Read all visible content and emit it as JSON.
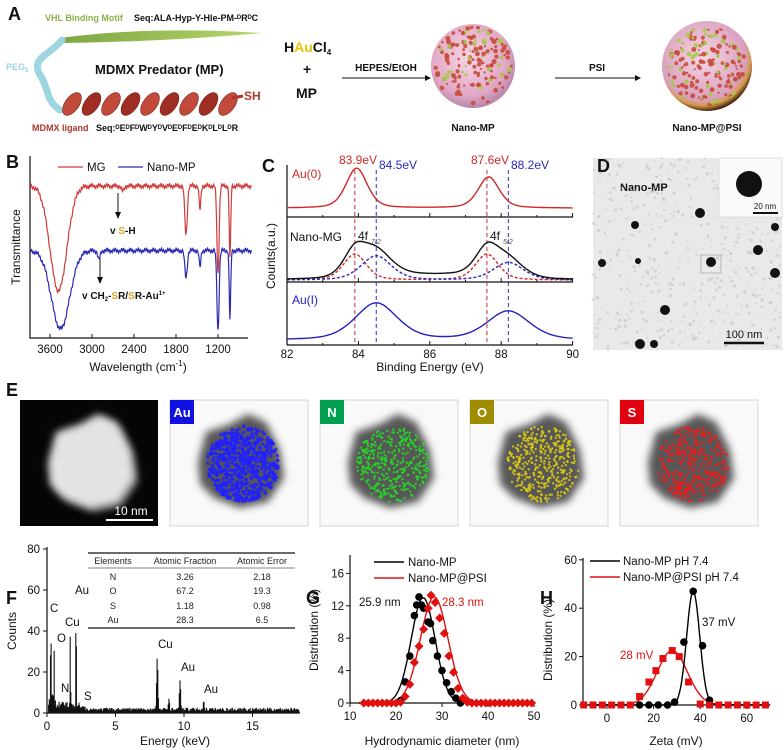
{
  "figure": {
    "panelA": {
      "letter": "A",
      "vhl_label": "VHL Binding Motif",
      "vhl_seq": "Seq:ALA-Hyp-Y-Hle-PM-ᴰRᴰC",
      "peg_label": "PEG",
      "peg_sub": "5",
      "mp_title": "MDMX Predator (MP)",
      "sh_label": "SH",
      "ligand_label": "MDMX ligand",
      "ligand_seq": "Seq:ᴰEᴰFᴰWᴰYᴰVᴰEᴰFᴰEᴰKᴰLᴰLᴰR",
      "reagent_h": "H",
      "reagent_au": "Au",
      "reagent_cl": "Cl",
      "reagent_sub": "4",
      "plus": "+",
      "mp": "MP",
      "step1": "HEPES/EtOH",
      "step2": "PSI",
      "product1": "Nano-MP",
      "product2": "Nano-MP@PSI",
      "colors": {
        "vhl": "#8db04a",
        "peg": "#9fd4e6",
        "ligand": "#b0362c",
        "au": "#e8c400"
      }
    },
    "panelB": {
      "letter": "B",
      "annot1_v": "v ",
      "annot1_s": "S",
      "annot1_rest": "-H",
      "annot2_v": "v CH",
      "annot2_sub": "2",
      "annot2_dash": "-",
      "annot2_s1": "S",
      "annot2_mid": "R/",
      "annot2_s2": "S",
      "annot2_rest": "R-Au",
      "annot2_sup": "1+"
    },
    "panelC": {
      "letter": "C",
      "nano_mg_label": "Nano-MG",
      "orbital1": "4f",
      "orbital1_sub": "7/2",
      "orbital2": "4f",
      "orbital2_sub": "5/2",
      "peak_labels": [
        "83.9eV",
        "84.5eV",
        "87.6eV",
        "88.2eV"
      ]
    },
    "panelD": {
      "letter": "D",
      "label": "Nano-MP",
      "scale_main": "100 nm",
      "scale_inset": "20 nm"
    },
    "panelE": {
      "letter": "E",
      "scale": "10 nm",
      "maps": [
        {
          "element": "Au",
          "color": "#1010e0"
        },
        {
          "element": "N",
          "color": "#00a050"
        },
        {
          "element": "O",
          "color": "#a08c00"
        },
        {
          "element": "S",
          "color": "#e00010"
        }
      ]
    },
    "panelF": {
      "letter": "F",
      "table": {
        "headers": [
          "Elements",
          "Atomic Fraction",
          "Atomic Error"
        ],
        "rows": [
          [
            "N",
            "3.26",
            "2.18"
          ],
          [
            "O",
            "67.2",
            "19.3"
          ],
          [
            "S",
            "1.18",
            "0.98"
          ],
          [
            "Au",
            "28.3",
            "6.5"
          ]
        ]
      }
    },
    "panelG": {
      "letter": "G",
      "annot_black": "25.9 nm",
      "annot_red": "28.3 nm"
    },
    "panelH": {
      "letter": "H",
      "annot_black": "37 mV",
      "annot_red": "28 mV"
    }
  },
  "chart_data": [
    {
      "panel": "B",
      "type": "line",
      "xlabel": "Wavelength (cm",
      "xlabel_sup": "-1",
      "xlabel_end": ")",
      "ylabel": "Transmittance",
      "xlim": [
        3880,
        720
      ],
      "xticks": [
        3600,
        3000,
        2400,
        1800,
        1200
      ],
      "grid": false,
      "legend": "top",
      "series": [
        {
          "name": "MG",
          "color": "#d03a3a",
          "baseline": 0.835,
          "bands": [
            {
              "wavenumber": 3480,
              "depth": 0.575,
              "width": 170
            },
            {
              "wavenumber": 2560,
              "depth": 0.03,
              "width": 25
            },
            {
              "wavenumber": 1657,
              "depth": 0.27,
              "width": 25
            },
            {
              "wavenumber": 1457,
              "depth": 0.13,
              "width": 18
            },
            {
              "wavenumber": 1200,
              "depth": 0.48,
              "width": 22
            },
            {
              "wavenumber": 1029,
              "depth": 0.4,
              "width": 15
            }
          ]
        },
        {
          "name": "Nano-MP",
          "color": "#2b2bb0",
          "baseline": 0.48,
          "bands": [
            {
              "wavenumber": 3450,
              "depth": 0.43,
              "width": 185
            },
            {
              "wavenumber": 2900,
              "depth": 0.05,
              "width": 25
            },
            {
              "wavenumber": 1657,
              "depth": 0.15,
              "width": 25
            },
            {
              "wavenumber": 1457,
              "depth": 0.09,
              "width": 18
            },
            {
              "wavenumber": 1200,
              "depth": 0.44,
              "width": 22
            },
            {
              "wavenumber": 1029,
              "depth": 0.38,
              "width": 15
            }
          ]
        }
      ]
    },
    {
      "panel": "C",
      "type": "line",
      "xlabel": "Binding Energy (eV)",
      "ylabel": "Counts(a.u.)",
      "xlim": [
        82,
        90
      ],
      "xticks": [
        82,
        84,
        86,
        88,
        90
      ],
      "series": [
        {
          "name": "Au(0)",
          "color": "#d02828",
          "peaks": [
            {
              "energy": 83.95,
              "height": 1.0,
              "hwhm": 0.35
            },
            {
              "energy": 87.65,
              "height": 0.78,
              "hwhm": 0.35
            }
          ]
        },
        {
          "name": "Nano-MG",
          "color": "#111111",
          "components": [
            {
              "color": "#d02828",
              "peaks": [
                {
                  "energy": 83.9,
                  "height": 0.62,
                  "hwhm": 0.38
                },
                {
                  "energy": 87.6,
                  "height": 0.62,
                  "hwhm": 0.38
                }
              ]
            },
            {
              "color": "#2a2ac0",
              "peaks": [
                {
                  "energy": 84.5,
                  "height": 0.58,
                  "hwhm": 0.5
                },
                {
                  "energy": 88.2,
                  "height": 0.42,
                  "hwhm": 0.5
                }
              ]
            }
          ]
        },
        {
          "name": "Au(I)",
          "color": "#2222c0",
          "peaks": [
            {
              "energy": 84.5,
              "height": 1.0,
              "hwhm": 0.7
            },
            {
              "energy": 88.2,
              "height": 0.78,
              "hwhm": 0.7
            }
          ]
        }
      ],
      "reference_lines": [
        {
          "energy": 83.9,
          "color": "#c03030"
        },
        {
          "energy": 84.5,
          "color": "#3030c0"
        },
        {
          "energy": 87.6,
          "color": "#c03030"
        },
        {
          "energy": 88.2,
          "color": "#3030c0"
        }
      ]
    },
    {
      "panel": "F",
      "type": "bar",
      "xlabel": "Energy (keV)",
      "ylabel": "Counts",
      "xlim": [
        0,
        18.5
      ],
      "ylim": [
        0,
        80
      ],
      "xticks": [
        0,
        5,
        10,
        15
      ],
      "yticks": [
        0,
        20,
        40,
        60,
        80
      ],
      "peaks": [
        {
          "label": "C",
          "energy": 0.28,
          "counts": 47
        },
        {
          "label": "N",
          "energy": 0.39,
          "counts": 9
        },
        {
          "label": "O",
          "energy": 0.52,
          "counts": 31
        },
        {
          "label": "Cu",
          "energy": 1.7,
          "counts": 38
        },
        {
          "label": "Au",
          "energy": 2.12,
          "counts": 54
        },
        {
          "label": "S",
          "energy": 2.31,
          "counts": 6
        },
        {
          "label": "Cu",
          "energy": 8.05,
          "counts": 27
        },
        {
          "label": "",
          "energy": 8.9,
          "counts": 7
        },
        {
          "label": "Au",
          "energy": 9.71,
          "counts": 16
        },
        {
          "label": "Au",
          "energy": 11.44,
          "counts": 6
        }
      ]
    },
    {
      "panel": "G",
      "type": "scatter",
      "xlabel": "Hydrodynamic diameter (nm)",
      "ylabel": "Distribution (%)",
      "xlim": [
        10,
        50
      ],
      "ylim": [
        0,
        18
      ],
      "xticks": [
        10,
        20,
        30,
        40,
        50
      ],
      "yticks": [
        0,
        4,
        8,
        12,
        16
      ],
      "legend": "top-left",
      "series": [
        {
          "name": "Nano-MP",
          "color": "#000000",
          "marker": "circle",
          "fit_mean": 25.9,
          "fit_sd": 2.6,
          "fit_amp": 13.0,
          "x": [
            21,
            22,
            23,
            24,
            24.5,
            25,
            25.5,
            26,
            27,
            27.5,
            28,
            29,
            30,
            31,
            32,
            33,
            34
          ],
          "y": [
            0.3,
            2.6,
            5.8,
            10.8,
            12.1,
            13.1,
            12.1,
            11.7,
            10.0,
            9.8,
            7.7,
            5.8,
            4.0,
            2.5,
            1.4,
            0.6,
            0
          ]
        },
        {
          "name": "Nano-MP@PSI",
          "color": "#e01010",
          "marker": "diamond",
          "fit_mean": 28.3,
          "fit_sd": 3.0,
          "fit_amp": 13.1,
          "x": [
            13,
            14,
            15,
            16,
            17,
            18,
            19,
            20,
            21,
            22,
            23,
            24,
            25,
            26,
            27,
            27.6,
            28.5,
            29.5,
            30.5,
            31.5,
            32.5,
            33.5,
            34.5,
            35.5,
            36.5,
            37.5,
            38.5,
            39.5,
            40.5,
            41.5,
            42.5,
            43.5,
            44.5,
            45.5,
            46.5,
            47.5,
            48.5,
            49.5
          ],
          "y": [
            0,
            0,
            0,
            0,
            0,
            0,
            0,
            0,
            0.1,
            0.8,
            2.3,
            5.0,
            7.0,
            9.1,
            11.7,
            13.3,
            12.4,
            10.5,
            8.6,
            5.8,
            3.8,
            1.8,
            0.6,
            0.1,
            0,
            0,
            0,
            0,
            0,
            0,
            0,
            0,
            0,
            0,
            0,
            0,
            0,
            0
          ]
        }
      ]
    },
    {
      "panel": "H",
      "type": "scatter",
      "xlabel": "Zeta (mV)",
      "ylabel": "Distribution (%)",
      "xlim": [
        -10,
        70
      ],
      "ylim": [
        0,
        60
      ],
      "xticks": [
        0,
        20,
        40,
        60
      ],
      "yticks": [
        0,
        20,
        40,
        60
      ],
      "legend": "top",
      "series": [
        {
          "name": "Nano-MP pH 7.4",
          "color": "#000000",
          "marker": "circle",
          "fit_mean": 37,
          "fit_sd": 2.8,
          "fit_amp": 47,
          "x": [
            14,
            18,
            22,
            26,
            29,
            33,
            37,
            41,
            44
          ],
          "y": [
            0,
            0,
            0,
            0,
            1.2,
            26,
            47,
            24.5,
            2
          ]
        },
        {
          "name": "Nano-MP@PSI pH 7.4",
          "color": "#e01010",
          "marker": "square",
          "fit_mean": 28,
          "fit_sd": 6.5,
          "fit_amp": 22.5,
          "x": [
            -10,
            -6,
            -2,
            2,
            6,
            10,
            14,
            18,
            21,
            24,
            28,
            31,
            35,
            40,
            44,
            48,
            52,
            56,
            60,
            64,
            68
          ],
          "y": [
            0,
            0,
            0,
            0,
            0,
            0,
            3.5,
            9.5,
            14.2,
            19.2,
            22.5,
            20,
            9.5,
            0.4,
            0,
            0,
            0,
            0,
            0,
            0,
            0
          ]
        }
      ]
    }
  ]
}
